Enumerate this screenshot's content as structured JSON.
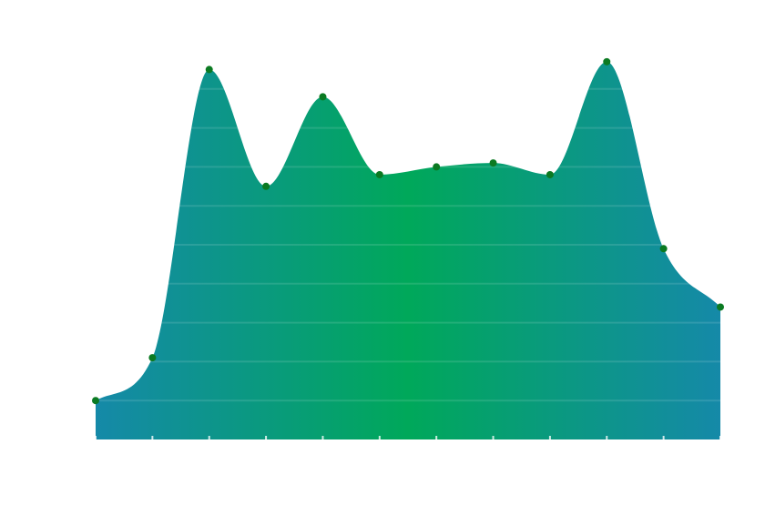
{
  "chart_data": {
    "type": "area",
    "categories": [
      null,
      null,
      null,
      null,
      null,
      null,
      null,
      null,
      null,
      null,
      null,
      null
    ],
    "values": [
      1.0,
      2.1,
      9.5,
      6.5,
      8.8,
      6.8,
      7.0,
      7.1,
      6.8,
      9.7,
      4.9,
      3.4
    ],
    "ylim": [
      0,
      10
    ],
    "yticks": [
      1,
      2,
      3,
      4,
      5,
      6,
      7,
      8,
      9,
      10
    ],
    "grid": true,
    "gradient_colors": [
      "#1589a8",
      "#00a85a",
      "#1589a8"
    ],
    "marker_color": "#0b7a22"
  }
}
